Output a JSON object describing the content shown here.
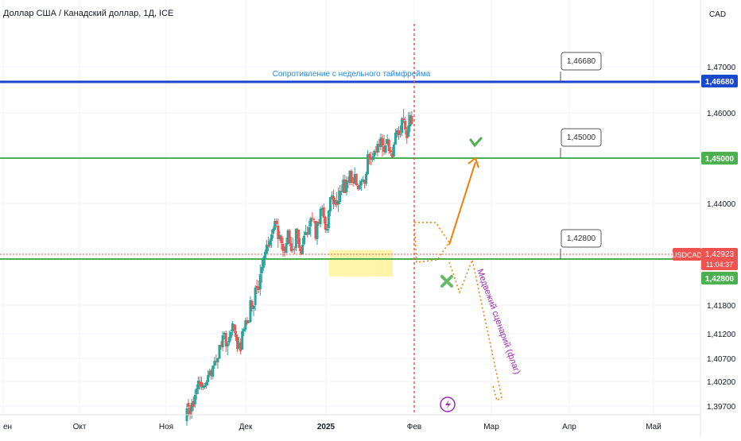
{
  "chart_data": {
    "type": "candlestick",
    "title": "Доллар США / Канадский доллар, 1Д, ICE",
    "symbol": "USDCAD",
    "currency": "CAD",
    "y_ticks": [
      "1,47000",
      "1,46000",
      "1,44000",
      "1,41800",
      "1,41200",
      "1,40700",
      "1,40200",
      "1,39700"
    ],
    "x_ticks": [
      "ен",
      "Окт",
      "Ноя",
      "Дек",
      "2025",
      "Фев",
      "Мар",
      "Апр",
      "Май"
    ],
    "levels": [
      {
        "value": "1,46680",
        "label": "1,46680",
        "color": "#1848cc",
        "note": "Сопротивление с недельного таймфрейма"
      },
      {
        "value": "1,45000",
        "label": "1,45000",
        "color": "#4caf50",
        "note": ""
      },
      {
        "value": "1,42800",
        "label": "1,42800",
        "color": "#4caf50",
        "note": ""
      }
    ],
    "price_tag": {
      "label": "USDCAD",
      "value": "1,42923",
      "countdown": "11:04:37",
      "color": "#ef5350"
    },
    "annotations": {
      "bearish_scenario": "Медвежий сценарий (флаг)"
    },
    "colors": {
      "up": "#26a69a",
      "down": "#ef5350",
      "orange": "#f57c00",
      "purple": "#9c27b0",
      "highlight": "#fff3a0"
    },
    "candles": [
      [
        235,
        -8,
        8,
        -14,
        14
      ],
      [
        236,
        15,
        10,
        -2,
        20
      ],
      [
        237,
        9,
        0,
        -6,
        12
      ],
      [
        238,
        4,
        15,
        -5,
        20
      ],
      [
        239,
        17,
        10,
        5,
        23
      ],
      [
        240,
        13,
        25,
        9,
        32
      ],
      [
        241,
        26,
        33,
        19,
        38
      ],
      [
        242,
        32,
        43,
        26,
        48
      ],
      [
        243,
        42,
        39,
        32,
        48
      ],
      [
        244,
        41,
        35,
        31,
        48
      ],
      [
        245,
        34,
        36,
        31,
        40
      ],
      [
        246,
        35,
        37,
        32,
        40
      ],
      [
        247,
        37,
        41,
        33,
        44
      ],
      [
        248,
        41,
        50,
        37,
        56
      ],
      [
        249,
        50,
        55,
        47,
        58
      ],
      [
        250,
        56,
        49,
        44,
        58
      ],
      [
        251,
        48,
        62,
        45,
        62
      ],
      [
        252,
        62,
        68,
        58,
        73
      ],
      [
        253,
        67,
        66,
        62,
        76
      ],
      [
        254,
        66,
        71,
        58,
        72
      ],
      [
        255,
        71,
        88,
        70,
        87
      ],
      [
        256,
        88,
        86,
        82,
        93
      ],
      [
        257,
        85,
        100,
        80,
        105
      ],
      [
        258,
        101,
        103,
        95,
        105
      ],
      [
        259,
        103,
        86,
        79,
        106
      ],
      [
        260,
        86,
        90,
        75,
        93
      ],
      [
        261,
        91,
        98,
        87,
        106
      ],
      [
        262,
        97,
        104,
        93,
        107
      ],
      [
        263,
        105,
        115,
        100,
        118
      ],
      [
        264,
        114,
        106,
        103,
        114
      ],
      [
        265,
        105,
        98,
        93,
        113
      ],
      [
        266,
        98,
        83,
        79,
        101
      ],
      [
        267,
        84,
        90,
        82,
        98
      ],
      [
        268,
        91,
        80,
        76,
        96
      ],
      [
        269,
        82,
        105,
        82,
        109
      ],
      [
        270,
        105,
        108,
        99,
        110
      ],
      [
        271,
        107,
        119,
        104,
        122
      ],
      [
        272,
        119,
        115,
        113,
        123
      ],
      [
        273,
        116,
        117,
        115,
        119
      ],
      [
        274,
        117,
        144,
        116,
        149
      ],
      [
        275,
        143,
        135,
        130,
        145
      ],
      [
        276,
        133,
        137,
        124,
        138
      ],
      [
        277,
        138,
        160,
        131,
        163
      ],
      [
        278,
        162,
        160,
        152,
        170
      ],
      [
        279,
        161,
        157,
        153,
        169
      ],
      [
        280,
        158,
        177,
        150,
        189
      ],
      [
        281,
        178,
        186,
        166,
        196
      ],
      [
        282,
        185,
        198,
        181,
        200
      ],
      [
        283,
        197,
        205,
        188,
        208
      ],
      [
        284,
        203,
        214,
        202,
        220
      ],
      [
        285,
        214,
        212,
        206,
        224
      ],
      [
        286,
        213,
        219,
        210,
        222
      ],
      [
        287,
        219,
        227,
        210,
        233
      ],
      [
        288,
        228,
        234,
        222,
        237
      ],
      [
        289,
        233,
        244,
        231,
        247
      ],
      [
        290,
        244,
        240,
        236,
        247
      ],
      [
        291,
        238,
        221,
        210,
        247
      ],
      [
        292,
        221,
        226,
        219,
        231
      ],
      [
        293,
        225,
        216,
        208,
        227
      ],
      [
        294,
        215,
        206,
        199,
        223
      ],
      [
        295,
        205,
        204,
        199,
        212
      ],
      [
        296,
        204,
        216,
        203,
        223
      ],
      [
        297,
        215,
        232,
        214,
        234
      ],
      [
        298,
        232,
        216,
        212,
        234
      ],
      [
        299,
        216,
        206,
        204,
        224
      ],
      [
        300,
        207,
        208,
        204,
        223
      ],
      [
        301,
        209,
        208,
        202,
        212
      ],
      [
        302,
        210,
        234,
        206,
        235
      ],
      [
        303,
        233,
        222,
        215,
        235
      ],
      [
        304,
        222,
        210,
        206,
        233
      ],
      [
        305,
        209,
        203,
        201,
        212
      ],
      [
        306,
        202,
        214,
        202,
        223
      ],
      [
        307,
        215,
        225,
        213,
        231
      ],
      [
        308,
        226,
        230,
        226,
        239
      ],
      [
        309,
        230,
        227,
        223,
        237
      ],
      [
        310,
        227,
        236,
        226,
        244
      ],
      [
        311,
        237,
        247,
        224,
        249
      ],
      [
        312,
        248,
        247,
        243,
        255
      ],
      [
        313,
        246,
        245,
        241,
        248
      ],
      [
        314,
        244,
        222,
        219,
        244
      ],
      [
        315,
        221,
        242,
        214,
        244
      ],
      [
        316,
        243,
        241,
        238,
        246
      ],
      [
        317,
        240,
        259,
        236,
        262
      ],
      [
        318,
        258,
        260,
        250,
        264
      ],
      [
        319,
        261,
        248,
        241,
        266
      ],
      [
        320,
        249,
        233,
        229,
        250
      ],
      [
        321,
        232,
        234,
        229,
        240
      ],
      [
        322,
        235,
        257,
        229,
        258
      ],
      [
        323,
        256,
        274,
        250,
        274
      ],
      [
        324,
        274,
        276,
        271,
        281
      ],
      [
        325,
        275,
        265,
        259,
        283
      ],
      [
        326,
        266,
        270,
        262,
        273
      ],
      [
        327,
        270,
        264,
        261,
        280
      ],
      [
        328,
        265,
        269,
        255,
        286
      ],
      [
        329,
        268,
        282,
        265,
        289
      ],
      [
        330,
        282,
        281,
        276,
        290
      ],
      [
        331,
        280,
        296,
        279,
        302
      ],
      [
        332,
        296,
        279,
        279,
        302
      ],
      [
        333,
        280,
        295,
        276,
        300
      ],
      [
        334,
        294,
        293,
        285,
        300
      ],
      [
        335,
        292,
        307,
        289,
        308
      ],
      [
        336,
        307,
        292,
        289,
        309
      ],
      [
        337,
        293,
        292,
        287,
        299
      ],
      [
        338,
        291,
        303,
        290,
        311
      ],
      [
        339,
        303,
        289,
        288,
        304
      ],
      [
        340,
        288,
        284,
        282,
        291
      ],
      [
        341,
        284,
        289,
        283,
        295
      ],
      [
        342,
        289,
        294,
        282,
        297
      ],
      [
        343,
        294,
        296,
        293,
        300
      ],
      [
        344,
        295,
        291,
        285,
        296
      ],
      [
        345,
        291,
        303,
        288,
        306
      ],
      [
        346,
        303,
        328,
        302,
        333
      ],
      [
        347,
        328,
        322,
        315,
        330
      ],
      [
        348,
        323,
        321,
        314,
        331
      ],
      [
        349,
        321,
        325,
        318,
        330
      ],
      [
        350,
        325,
        332,
        320,
        334
      ],
      [
        351,
        332,
        330,
        327,
        338
      ],
      [
        352,
        330,
        341,
        325,
        345
      ],
      [
        353,
        341,
        338,
        330,
        347
      ],
      [
        354,
        337,
        349,
        333,
        354
      ],
      [
        355,
        348,
        339,
        325,
        353
      ],
      [
        356,
        338,
        331,
        327,
        352
      ],
      [
        357,
        330,
        339,
        328,
        347
      ],
      [
        358,
        341,
        347,
        339,
        353
      ],
      [
        359,
        346,
        332,
        328,
        348
      ],
      [
        360,
        333,
        330,
        326,
        337
      ],
      [
        361,
        329,
        324,
        322,
        337
      ],
      [
        362,
        325,
        340,
        323,
        343
      ],
      [
        363,
        340,
        355,
        340,
        360
      ],
      [
        364,
        354,
        358,
        349,
        361
      ],
      [
        365,
        358,
        352,
        346,
        363
      ],
      [
        366,
        353,
        354,
        349,
        364
      ],
      [
        367,
        355,
        373,
        351,
        375
      ],
      [
        368,
        373,
        371,
        367,
        385
      ],
      [
        369,
        370,
        359,
        353,
        375
      ],
      [
        370,
        358,
        348,
        341,
        362
      ],
      [
        371,
        350,
        364,
        349,
        381
      ],
      [
        372,
        363,
        377,
        356,
        381
      ],
      [
        373,
        376,
        366,
        365,
        382
      ]
    ]
  }
}
